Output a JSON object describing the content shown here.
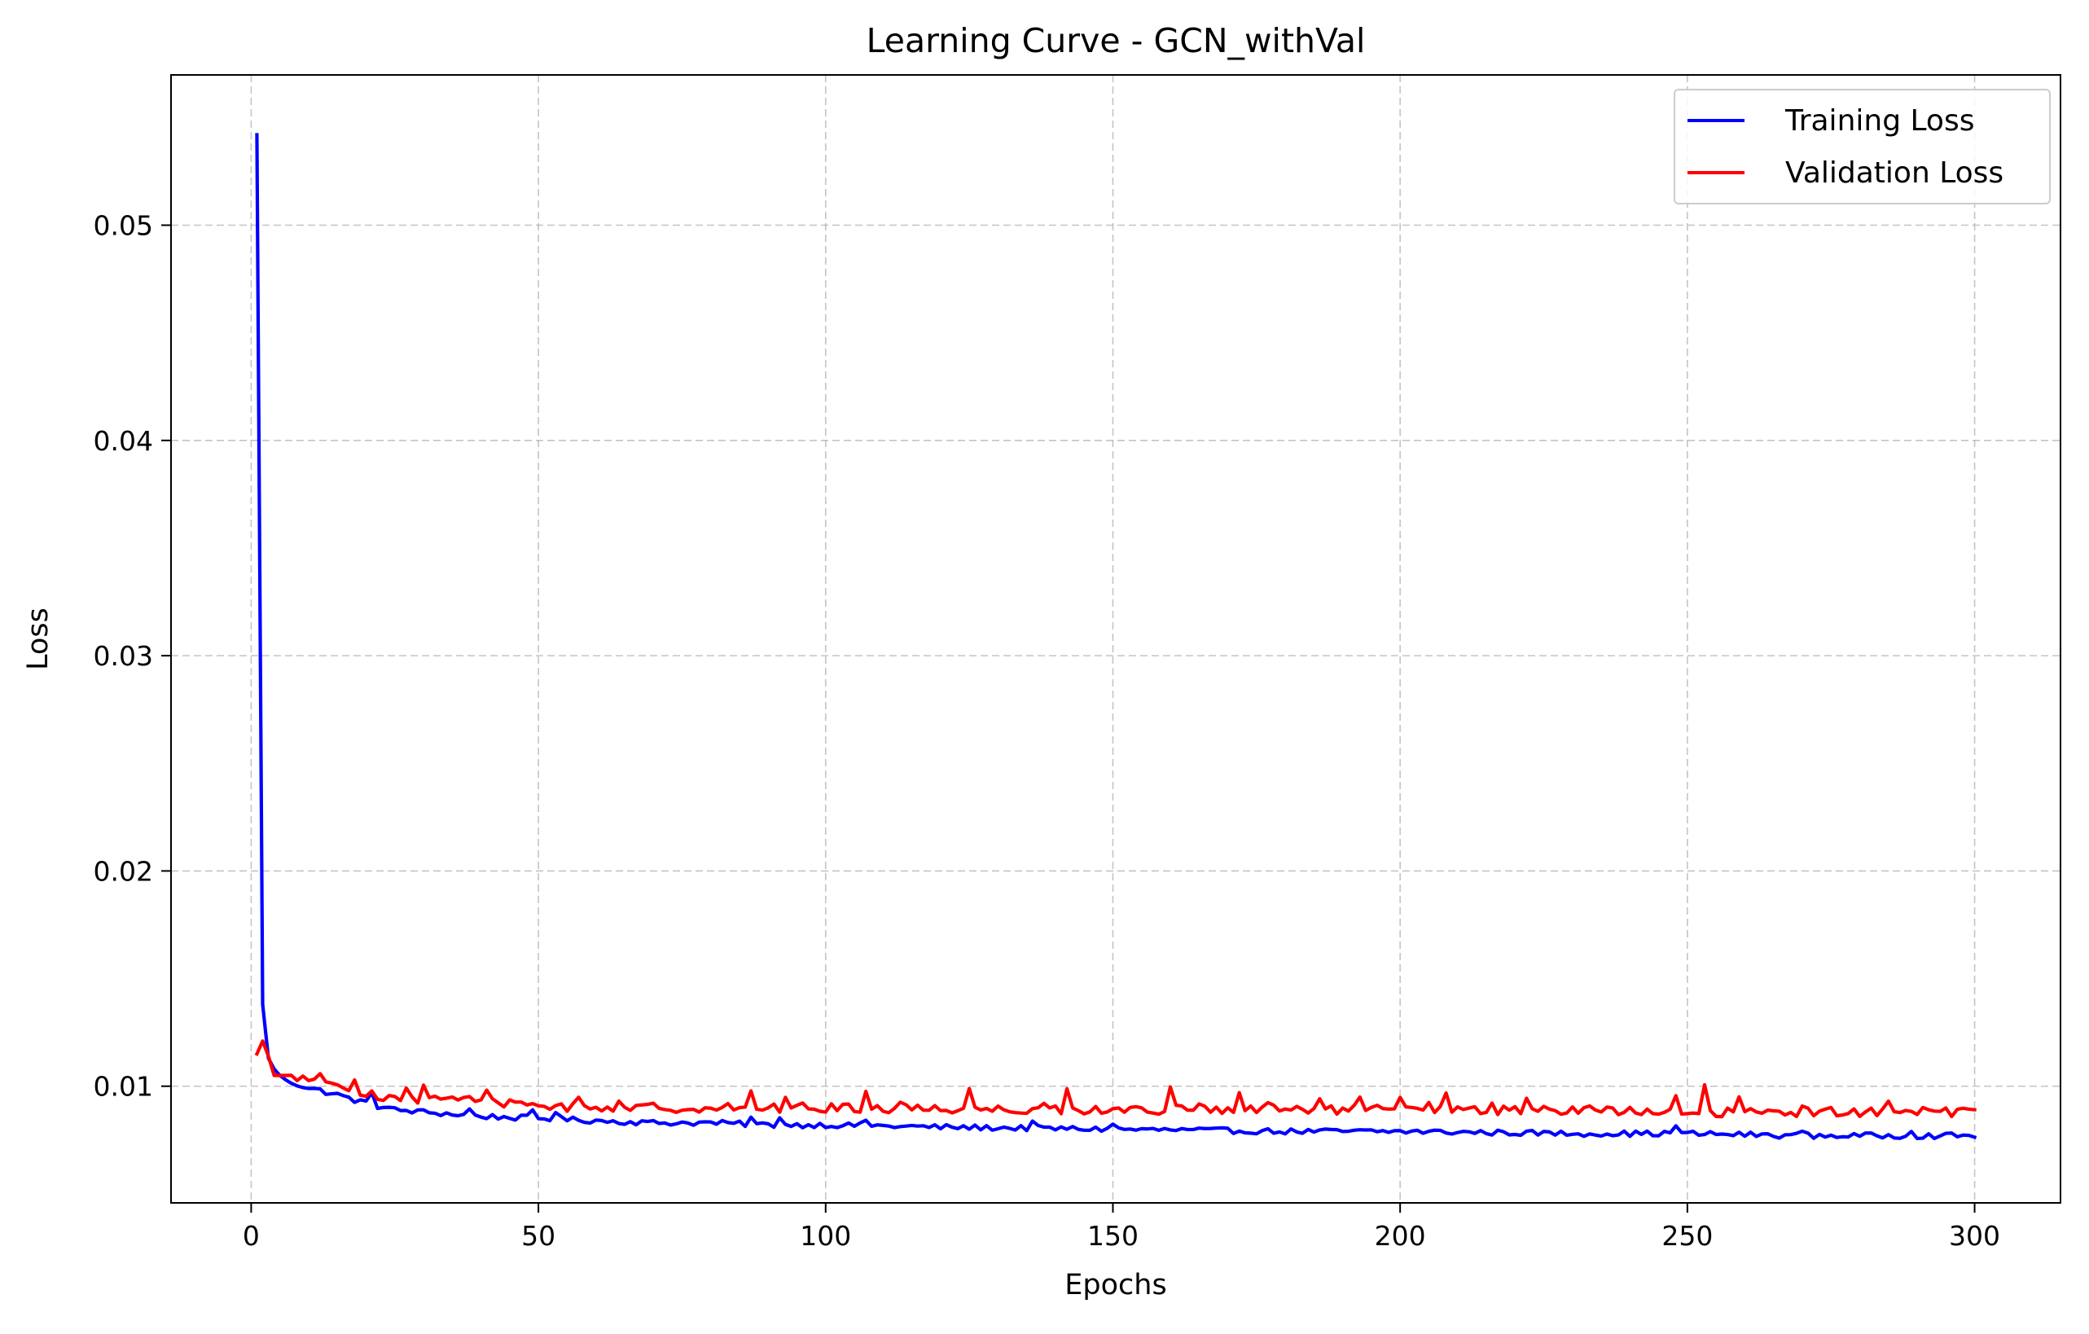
{
  "chart_data": {
    "type": "line",
    "title": "Learning Curve - GCN_withVal",
    "xlabel": "Epochs",
    "ylabel": "Loss",
    "xlim": [
      -13.95,
      314.95
    ],
    "ylim": [
      0.00458,
      0.05698
    ],
    "xticks": [
      0,
      50,
      100,
      150,
      200,
      250,
      300
    ],
    "xtick_labels": [
      "0",
      "50",
      "100",
      "150",
      "200",
      "250",
      "300"
    ],
    "yticks": [
      0.01,
      0.02,
      0.03,
      0.04,
      0.05
    ],
    "ytick_labels": [
      "0.01",
      "0.02",
      "0.03",
      "0.04",
      "0.05"
    ],
    "grid": true,
    "grid_style": "dashed",
    "legend_position": "upper right",
    "x_start": 1,
    "x_end": 300,
    "series": [
      {
        "name": "Training Loss",
        "color": "#0000ff",
        "keypoints": [
          [
            1,
            0.0542
          ],
          [
            2,
            0.0138
          ],
          [
            3,
            0.0113
          ],
          [
            4,
            0.0108
          ],
          [
            5,
            0.0105
          ],
          [
            6,
            0.0103
          ],
          [
            8,
            0.0101
          ],
          [
            10,
            0.0099
          ],
          [
            12,
            0.0098
          ],
          [
            15,
            0.0096
          ],
          [
            20,
            0.0092
          ],
          [
            25,
            0.0089
          ],
          [
            30,
            0.0088
          ],
          [
            40,
            0.0086
          ],
          [
            50,
            0.0085
          ],
          [
            60,
            0.0084
          ],
          [
            70,
            0.0083
          ],
          [
            80,
            0.0083
          ],
          [
            90,
            0.0082
          ],
          [
            100,
            0.0082
          ],
          [
            120,
            0.0081
          ],
          [
            150,
            0.008
          ],
          [
            180,
            0.0079
          ],
          [
            200,
            0.0079
          ],
          [
            230,
            0.0078
          ],
          [
            250,
            0.0078
          ],
          [
            270,
            0.0077
          ],
          [
            300,
            0.0077
          ]
        ],
        "noise": 0.00013,
        "spikes": [
          [
            21,
            0.0006
          ],
          [
            38,
            0.0003
          ],
          [
            49,
            0.0003
          ],
          [
            53,
            0.0004
          ],
          [
            87,
            0.0003
          ],
          [
            92,
            0.0004
          ],
          [
            107,
            0.0003
          ],
          [
            136,
            0.0003
          ],
          [
            150,
            0.0003
          ],
          [
            248,
            0.0004
          ],
          [
            270,
            0.0003
          ],
          [
            289,
            0.0003
          ]
        ]
      },
      {
        "name": "Validation Loss",
        "color": "#ff0000",
        "keypoints": [
          [
            1,
            0.0115
          ],
          [
            2,
            0.0121
          ],
          [
            3,
            0.0114
          ],
          [
            4,
            0.0105
          ],
          [
            6,
            0.0105
          ],
          [
            10,
            0.0103
          ],
          [
            15,
            0.0099
          ],
          [
            20,
            0.0096
          ],
          [
            30,
            0.0094
          ],
          [
            40,
            0.0093
          ],
          [
            50,
            0.0091
          ],
          [
            60,
            0.009
          ],
          [
            80,
            0.009
          ],
          [
            100,
            0.009
          ],
          [
            150,
            0.0089
          ],
          [
            200,
            0.0089
          ],
          [
            250,
            0.0088
          ],
          [
            300,
            0.0088
          ]
        ],
        "noise": 0.00022,
        "spikes": [
          [
            12,
            0.0003
          ],
          [
            18,
            0.0006
          ],
          [
            21,
            0.0004
          ],
          [
            27,
            0.0004
          ],
          [
            30,
            0.0007
          ],
          [
            35,
            0.0003
          ],
          [
            41,
            0.0004
          ],
          [
            46,
            0.0003
          ],
          [
            57,
            0.0004
          ],
          [
            64,
            0.0004
          ],
          [
            87,
            0.0006
          ],
          [
            93,
            0.0004
          ],
          [
            107,
            0.0007
          ],
          [
            113,
            0.0003
          ],
          [
            125,
            0.0009
          ],
          [
            138,
            0.0004
          ],
          [
            142,
            0.0008
          ],
          [
            160,
            0.0011
          ],
          [
            165,
            0.0003
          ],
          [
            172,
            0.0006
          ],
          [
            177,
            0.0004
          ],
          [
            186,
            0.0006
          ],
          [
            193,
            0.0004
          ],
          [
            200,
            0.0006
          ],
          [
            205,
            0.0004
          ],
          [
            208,
            0.0009
          ],
          [
            216,
            0.0004
          ],
          [
            222,
            0.0008
          ],
          [
            225,
            0.0004
          ],
          [
            233,
            0.0004
          ],
          [
            240,
            0.0003
          ],
          [
            248,
            0.0007
          ],
          [
            253,
            0.0011
          ],
          [
            259,
            0.0006
          ],
          [
            270,
            0.0004
          ],
          [
            285,
            0.0004
          ]
        ]
      }
    ]
  }
}
